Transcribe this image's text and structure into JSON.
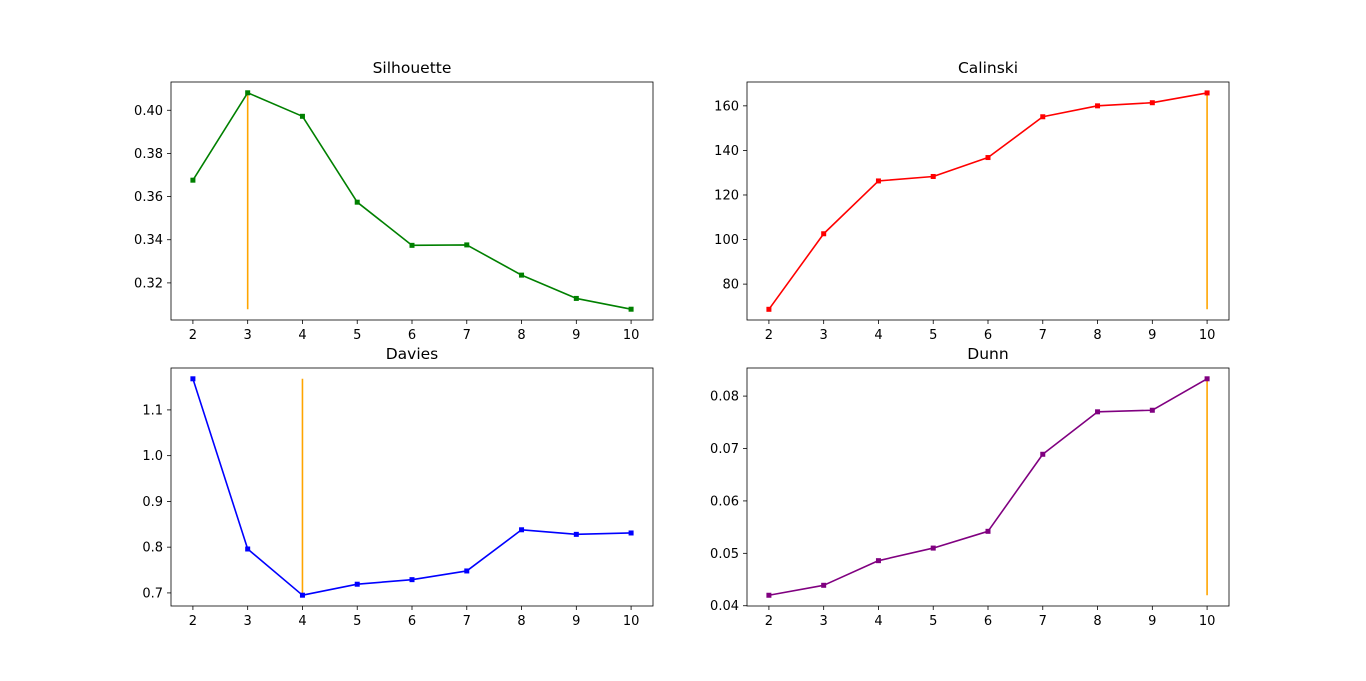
{
  "chart_data": [
    {
      "type": "line",
      "title": "Silhouette",
      "xlabel": "",
      "ylabel": "",
      "x": [
        2,
        3,
        4,
        5,
        6,
        7,
        8,
        9,
        10
      ],
      "series": [
        {
          "values": [
            0.3676,
            0.4081,
            0.3972,
            0.3574,
            0.3374,
            0.3376,
            0.3236,
            0.3128,
            0.3078
          ],
          "color": "#008000"
        }
      ],
      "vline": {
        "x": 3,
        "ymin": 0.3078,
        "ymax": 0.4081,
        "color": "#ffa500"
      },
      "xlim": [
        1.6,
        10.4
      ],
      "ylim": [
        0.3028,
        0.4131
      ],
      "xticks": [
        "2",
        "3",
        "4",
        "5",
        "6",
        "7",
        "8",
        "9",
        "10"
      ],
      "yticks": [
        "0.32",
        "0.34",
        "0.36",
        "0.38",
        "0.40"
      ],
      "ytick_values": [
        0.32,
        0.34,
        0.36,
        0.38,
        0.4
      ],
      "marker": "square",
      "grid": false
    },
    {
      "type": "line",
      "title": "Calinski",
      "xlabel": "",
      "ylabel": "",
      "x": [
        2,
        3,
        4,
        5,
        6,
        7,
        8,
        9,
        10
      ],
      "series": [
        {
          "values": [
            68.7,
            102.6,
            126.3,
            128.3,
            136.8,
            155.1,
            160.0,
            161.4,
            165.8
          ],
          "color": "#ff0000"
        }
      ],
      "vline": {
        "x": 10,
        "ymin": 68.7,
        "ymax": 165.8,
        "color": "#ffa500"
      },
      "xlim": [
        1.6,
        10.4
      ],
      "ylim": [
        63.9,
        170.7
      ],
      "xticks": [
        "2",
        "3",
        "4",
        "5",
        "6",
        "7",
        "8",
        "9",
        "10"
      ],
      "yticks": [
        "80",
        "100",
        "120",
        "140",
        "160"
      ],
      "ytick_values": [
        80,
        100,
        120,
        140,
        160
      ],
      "marker": "square",
      "grid": false
    },
    {
      "type": "line",
      "title": "Davies",
      "xlabel": "",
      "ylabel": "",
      "x": [
        2,
        3,
        4,
        5,
        6,
        7,
        8,
        9,
        10
      ],
      "series": [
        {
          "values": [
            1.168,
            0.796,
            0.695,
            0.719,
            0.729,
            0.748,
            0.838,
            0.828,
            0.831
          ],
          "color": "#0000ff"
        }
      ],
      "vline": {
        "x": 4,
        "ymin": 0.695,
        "ymax": 1.168,
        "color": "#ffa500"
      },
      "xlim": [
        1.6,
        10.4
      ],
      "ylim": [
        0.6714,
        1.1916
      ],
      "xticks": [
        "2",
        "3",
        "4",
        "5",
        "6",
        "7",
        "8",
        "9",
        "10"
      ],
      "yticks": [
        "0.7",
        "0.8",
        "0.9",
        "1.0",
        "1.1"
      ],
      "ytick_values": [
        0.7,
        0.8,
        0.9,
        1.0,
        1.1
      ],
      "marker": "square",
      "grid": false
    },
    {
      "type": "line",
      "title": "Dunn",
      "xlabel": "",
      "ylabel": "",
      "x": [
        2,
        3,
        4,
        5,
        6,
        7,
        8,
        9,
        10
      ],
      "series": [
        {
          "values": [
            0.042,
            0.0439,
            0.0486,
            0.051,
            0.0542,
            0.0689,
            0.077,
            0.0773,
            0.0833
          ],
          "color": "#800080"
        }
      ],
      "vline": {
        "x": 10,
        "ymin": 0.042,
        "ymax": 0.0833,
        "color": "#ffa500"
      },
      "xlim": [
        1.6,
        10.4
      ],
      "ylim": [
        0.03995,
        0.08536
      ],
      "xticks": [
        "2",
        "3",
        "4",
        "5",
        "6",
        "7",
        "8",
        "9",
        "10"
      ],
      "yticks": [
        "0.04",
        "0.05",
        "0.06",
        "0.07",
        "0.08"
      ],
      "ytick_values": [
        0.04,
        0.05,
        0.06,
        0.07,
        0.08
      ],
      "marker": "square",
      "grid": false
    }
  ]
}
